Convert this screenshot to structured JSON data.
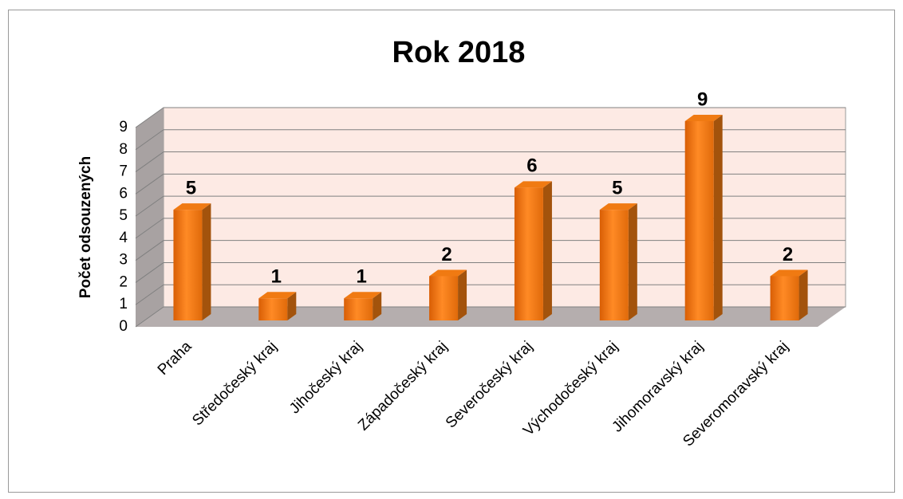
{
  "chart_data": {
    "type": "bar",
    "title": "Rok 2018",
    "y_label": "Počet odsouzených",
    "categories": [
      "Praha",
      "Středočeský kraj",
      "Jihočeský kraj",
      "Západočeský kraj",
      "Severočeský kraj",
      "Východočeský kraj",
      "Jihomoravský kraj",
      "Severomoravský kraj"
    ],
    "values": [
      5,
      1,
      1,
      2,
      6,
      5,
      9,
      2
    ],
    "color": "#f07a12",
    "ylim": [
      0,
      9
    ],
    "yticks": [
      0,
      1,
      2,
      3,
      4,
      5,
      6,
      7,
      8,
      9
    ],
    "grid": true
  }
}
